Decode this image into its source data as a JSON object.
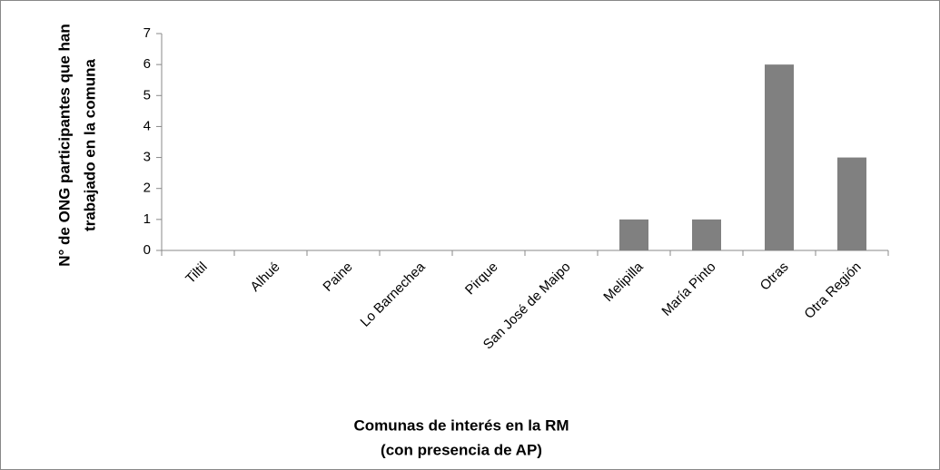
{
  "chart_data": {
    "type": "bar",
    "categories": [
      "Tiltil",
      "Alhué",
      "Paine",
      "Lo Barnechea",
      "Pirque",
      "San José de Maipo",
      "Melipilla",
      "María Pinto",
      "Otras",
      "Otra Región"
    ],
    "values": [
      0,
      0,
      0,
      0,
      0,
      0,
      1,
      1,
      6,
      3
    ],
    "color": "#808080",
    "ylim": [
      0,
      7
    ],
    "yticks": [
      0,
      1,
      2,
      3,
      4,
      5,
      6,
      7
    ],
    "ylabel": [
      "N° de ONG participantes  que han",
      "trabajado en la comuna"
    ],
    "xlabel": [
      "Comunas de interés en la RM",
      "(con presencia de AP)"
    ]
  }
}
